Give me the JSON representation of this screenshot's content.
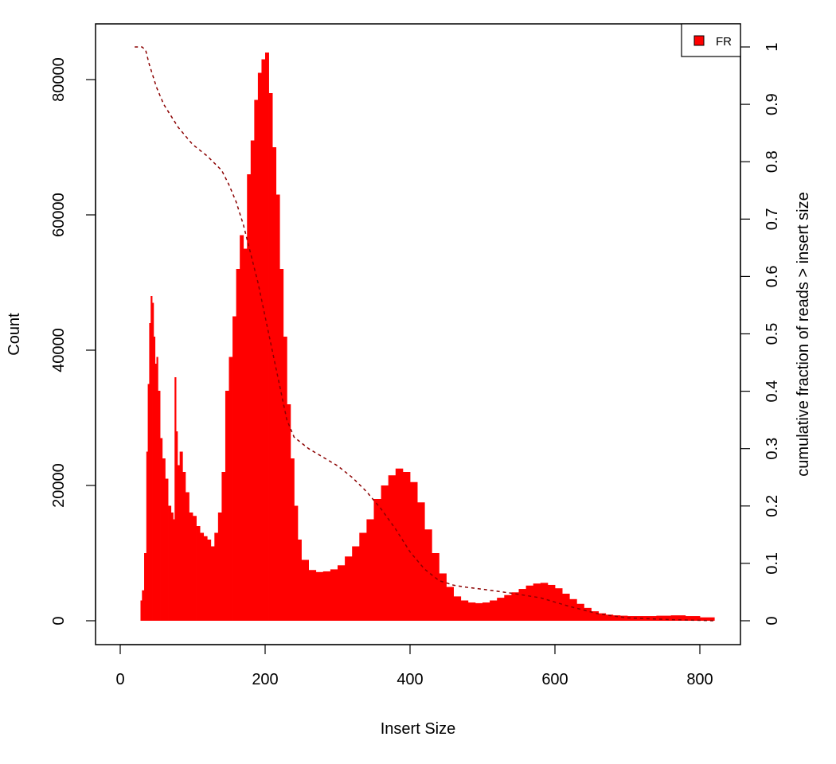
{
  "chart_data": {
    "type": "area",
    "title": "",
    "xlabel": "Insert Size",
    "ylabel": "Count",
    "y2label": "cumulative fraction of reads > insert size",
    "xlim": [
      0,
      820
    ],
    "ylim": [
      0,
      85000
    ],
    "y2lim": [
      0,
      1
    ],
    "x_ticks": [
      0,
      200,
      400,
      600,
      800
    ],
    "y_ticks": [
      0,
      20000,
      40000,
      60000,
      80000
    ],
    "y2_ticks": [
      0,
      0.1,
      0.2,
      0.3,
      0.4,
      0.5,
      0.6,
      0.7,
      0.8,
      0.9,
      1
    ],
    "grid": false,
    "legend": {
      "position": "top-right",
      "entries": [
        {
          "name": "FR",
          "color": "#ff0000"
        }
      ]
    },
    "series": [
      {
        "name": "FR",
        "kind": "histogram",
        "color": "#ff0000",
        "x": [
          20,
          25,
          28,
          30,
          33,
          36,
          38,
          40,
          42,
          44,
          46,
          48,
          50,
          52,
          55,
          58,
          62,
          66,
          70,
          73,
          75,
          77,
          79,
          82,
          86,
          90,
          95,
          100,
          105,
          110,
          115,
          120,
          125,
          130,
          135,
          140,
          145,
          150,
          155,
          160,
          165,
          170,
          175,
          180,
          185,
          190,
          195,
          200,
          205,
          210,
          215,
          220,
          225,
          230,
          235,
          240,
          245,
          250,
          260,
          270,
          280,
          290,
          300,
          310,
          320,
          330,
          340,
          350,
          360,
          370,
          380,
          390,
          400,
          410,
          420,
          430,
          440,
          450,
          460,
          470,
          480,
          490,
          500,
          510,
          520,
          530,
          540,
          550,
          560,
          570,
          580,
          590,
          600,
          610,
          620,
          630,
          640,
          650,
          660,
          670,
          680,
          690,
          700,
          720,
          740,
          760,
          780,
          800,
          820
        ],
        "values": [
          0,
          0,
          3000,
          4500,
          10000,
          25000,
          35000,
          44000,
          48000,
          47000,
          42000,
          38000,
          39000,
          34000,
          27000,
          24000,
          21000,
          17000,
          16000,
          15000,
          36000,
          28000,
          23000,
          25000,
          22000,
          19000,
          16000,
          15500,
          14000,
          13000,
          12500,
          12000,
          11000,
          13000,
          16000,
          22000,
          34000,
          39000,
          45000,
          52000,
          57000,
          55000,
          66000,
          71000,
          77000,
          81000,
          83000,
          84000,
          78000,
          70000,
          63000,
          52000,
          42000,
          32000,
          24000,
          17000,
          12000,
          9000,
          7500,
          7200,
          7300,
          7600,
          8200,
          9500,
          11000,
          13000,
          15000,
          18000,
          20000,
          21500,
          22500,
          22000,
          20500,
          17500,
          13500,
          10000,
          7000,
          5000,
          3600,
          3000,
          2700,
          2600,
          2700,
          3000,
          3400,
          3800,
          4200,
          4700,
          5200,
          5500,
          5600,
          5300,
          4800,
          4000,
          3200,
          2500,
          1900,
          1400,
          1100,
          900,
          800,
          750,
          700,
          700,
          750,
          800,
          700,
          500,
          300
        ]
      },
      {
        "name": "cumulative",
        "kind": "cumulative_line",
        "axis": "right",
        "color": "#8b0000",
        "style": "dashed",
        "x": [
          20,
          30,
          35,
          40,
          50,
          60,
          80,
          100,
          120,
          140,
          150,
          160,
          170,
          180,
          190,
          200,
          210,
          220,
          230,
          240,
          260,
          280,
          300,
          320,
          340,
          360,
          380,
          400,
          420,
          440,
          460,
          480,
          500,
          540,
          580,
          620,
          660,
          700,
          760,
          820
        ],
        "values": [
          1.0,
          1.0,
          0.995,
          0.97,
          0.93,
          0.9,
          0.86,
          0.83,
          0.81,
          0.785,
          0.76,
          0.73,
          0.69,
          0.64,
          0.59,
          0.53,
          0.47,
          0.41,
          0.35,
          0.32,
          0.3,
          0.285,
          0.27,
          0.25,
          0.225,
          0.195,
          0.16,
          0.12,
          0.09,
          0.07,
          0.062,
          0.058,
          0.055,
          0.048,
          0.04,
          0.025,
          0.012,
          0.005,
          0.002,
          0
        ]
      }
    ]
  }
}
